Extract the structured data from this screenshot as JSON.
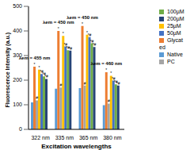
{
  "chart_data": {
    "type": "bar",
    "x_label": "Excitation wavelengths",
    "y_label": "Fluorescence Intensity (a.u.)",
    "categories": [
      "322 nm",
      "335 nm",
      "365 nm",
      "380 nm"
    ],
    "category_annotations": [
      "λem = 455 nm",
      "λem = 450 nm",
      "λem = 450 nm",
      "λem = 460 nm"
    ],
    "ylim": [
      0,
      500
    ],
    "yticks": [
      0,
      100,
      200,
      300,
      400,
      500
    ],
    "grid": false,
    "legend": "right",
    "series": [
      {
        "name": "Native",
        "color": "#5b9bd5",
        "values": [
          110,
          165,
          168,
          98
        ]
      },
      {
        "name": "Glycated",
        "color": "#ed7d31",
        "values": [
          255,
          400,
          420,
          232
        ],
        "annotations": [
          "*",
          "*",
          "*",
          "*"
        ]
      },
      {
        "name": "PC",
        "color": "#a5a5a5",
        "values": [
          118,
          170,
          178,
          105
        ],
        "annotations": [
          "#",
          "#",
          "#",
          "#"
        ]
      },
      {
        "name": "25µM",
        "color": "#ffc000",
        "values": [
          243,
          380,
          385,
          218
        ],
        "annotations": [
          "*",
          "*",
          "*",
          "*"
        ]
      },
      {
        "name": "50µM",
        "color": "#4472c4",
        "values": [
          225,
          337,
          375,
          198
        ],
        "annotations": [
          "*#",
          "*#",
          "*#",
          "*#"
        ]
      },
      {
        "name": "100µM",
        "color": "#70ad47",
        "values": [
          215,
          322,
          350,
          183
        ],
        "annotations": [
          "*#",
          "*#",
          "*#",
          "*#"
        ]
      },
      {
        "name": "200µM",
        "color": "#264478",
        "values": [
          205,
          320,
          335,
          178
        ],
        "annotations": [
          "*#",
          "*#",
          "*#",
          "*#"
        ]
      }
    ]
  }
}
